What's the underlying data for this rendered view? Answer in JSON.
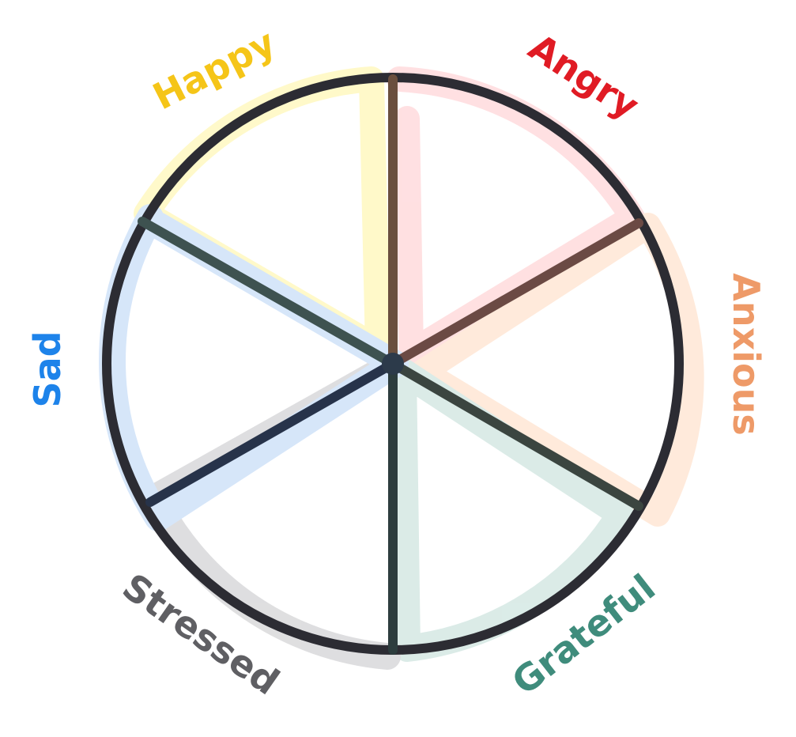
{
  "emotions": [
    {
      "id": "happy",
      "label": "Happy",
      "color": "#f5c518",
      "tint": "#fff7b8"
    },
    {
      "id": "angry",
      "label": "Angry",
      "color": "#e01b24",
      "tint": "#ffd6d8"
    },
    {
      "id": "anxious",
      "label": "Anxious",
      "color": "#ee9a68",
      "tint": "#ffe3cf"
    },
    {
      "id": "grateful",
      "label": "Grateful",
      "color": "#3f8c7c",
      "tint": "#cfe5e0"
    },
    {
      "id": "stressed",
      "label": "Stressed",
      "color": "#5f5f63",
      "tint": "#d4d4d6"
    },
    {
      "id": "sad",
      "label": "Sad",
      "color": "#1d83ea",
      "tint": "#c9def8"
    }
  ],
  "colors": {
    "ink": "#2c2c33",
    "background": "#ffffff"
  }
}
